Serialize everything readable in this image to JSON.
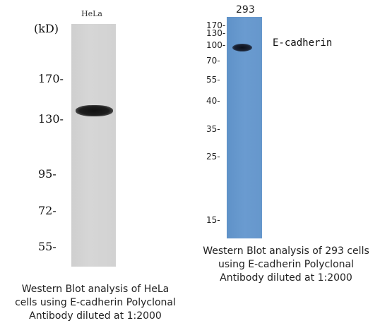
{
  "left_blot": {
    "lane_label": "HeLa",
    "unit_label": "(kD)",
    "markers": [
      "170-",
      "130-",
      "95-",
      "72-",
      "55-"
    ],
    "caption_lines": [
      "Western Blot analysis of HeLa",
      "cells using E-cadherin Polyclonal",
      "Antibody diluted at 1:2000"
    ]
  },
  "right_blot": {
    "lane_label": "293",
    "band_label": "E-cadherin",
    "markers": [
      "170-",
      "130-",
      "100-",
      "70-",
      "55-",
      "40-",
      "35-",
      "25-",
      "15-"
    ],
    "caption_lines": [
      "Western Blot analysis of 293 cells",
      "using E-cadherin Polyclonal",
      "Antibody diluted at 1:2000"
    ]
  },
  "colors": {
    "left_lane": "#d3d3d3",
    "right_lane": "#6697cc",
    "band": "#111111"
  }
}
